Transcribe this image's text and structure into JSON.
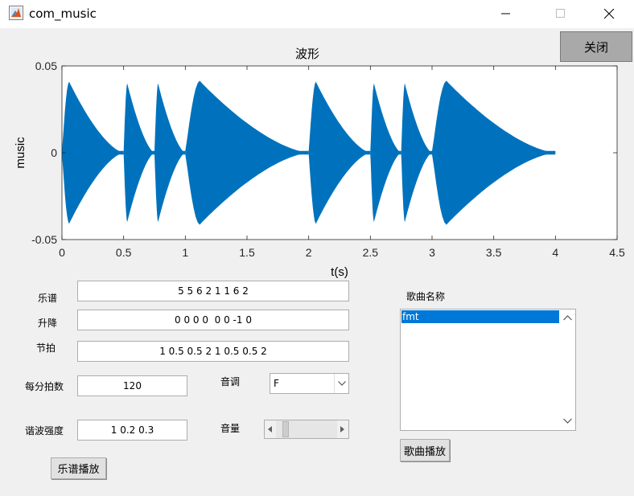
{
  "window": {
    "title": "com_music",
    "close_label": "关闭"
  },
  "chart_data": {
    "type": "line",
    "title": "波形",
    "xlabel": "t(s)",
    "ylabel": "music",
    "xlim": [
      0,
      4.5
    ],
    "ylim": [
      -0.05,
      0.05
    ],
    "xticks": [
      "0",
      "0.5",
      "1",
      "1.5",
      "2",
      "2.5",
      "3",
      "3.5",
      "4",
      "4.5"
    ],
    "yticks": [
      "-0.05",
      "0",
      "0.05"
    ],
    "grid": false,
    "color": "#0072bd",
    "series": [
      {
        "notes": [
          {
            "start": 0,
            "end": 0.5,
            "peak": 0.041
          },
          {
            "start": 0.5,
            "end": 0.75,
            "peak": 0.04
          },
          {
            "start": 0.75,
            "end": 1,
            "peak": 0.04
          },
          {
            "start": 1,
            "end": 2,
            "peak": 0.0415
          },
          {
            "start": 2,
            "end": 2.5,
            "peak": 0.041
          },
          {
            "start": 2.5,
            "end": 2.75,
            "peak": 0.04
          },
          {
            "start": 2.75,
            "end": 3,
            "peak": 0.04
          },
          {
            "start": 3,
            "end": 4,
            "peak": 0.0415
          }
        ]
      }
    ]
  },
  "form": {
    "score_label": "乐谱",
    "score_value": "5 5 6 2 1 1 6 2",
    "shift_label": "升降",
    "shift_value": "0 0 0 0  0 0 -1 0",
    "beat_label": "节拍",
    "beat_value": "1 0.5 0.5 2 1 0.5 0.5 2",
    "bpm_label": "每分拍数",
    "bpm_value": "120",
    "key_label": "音调",
    "key_value": "F",
    "harmonic_label": "谐波强度",
    "harmonic_value": "1 0.2 0.3",
    "volume_label": "音量",
    "volume_level": 0.1,
    "play_score_label": "乐谱播放"
  },
  "songs": {
    "label": "歌曲名称",
    "items": [
      "fmt"
    ],
    "play_label": "歌曲播放"
  }
}
